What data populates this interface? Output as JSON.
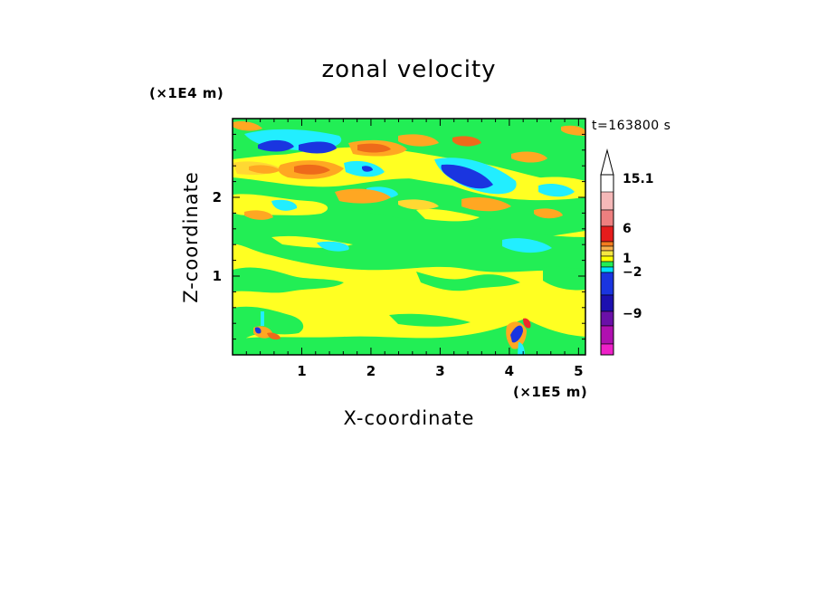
{
  "chart_data": {
    "type": "heatmap",
    "title": "zonal velocity",
    "xlabel": "X-coordinate",
    "ylabel": "Z-coordinate",
    "x_unit": "(×1E5 m)",
    "y_unit": "(×1E4 m)",
    "timestamp": "t=163800 s",
    "x_ticks": [
      1,
      2,
      3,
      4,
      5
    ],
    "y_ticks": [
      1,
      2
    ],
    "xlim": [
      0,
      5.1
    ],
    "ylim": [
      0,
      3.0
    ],
    "colorbar": {
      "labels": [
        "15.1",
        "6",
        "1",
        "−2",
        "−9"
      ],
      "colors": [
        "#ffffff",
        "#f5b8b8",
        "#ee7f7f",
        "#e51c1c",
        "#f47c1e",
        "#f9b04b",
        "#f5e642",
        "#ffff00",
        "#22ee55",
        "#00e0ff",
        "#1a35e0",
        "#1c10b0",
        "#6a10a8",
        "#b010b0",
        "#ee20c8"
      ]
    },
    "field_colors": {
      "background": "#ffff22",
      "green": "#22ee55",
      "cyan": "#22eeff",
      "orange": "#ffa722",
      "lightorange": "#ffd833",
      "blue": "#1a35e0",
      "darkorange": "#ee6a1a",
      "red": "#ee2a2a"
    }
  }
}
